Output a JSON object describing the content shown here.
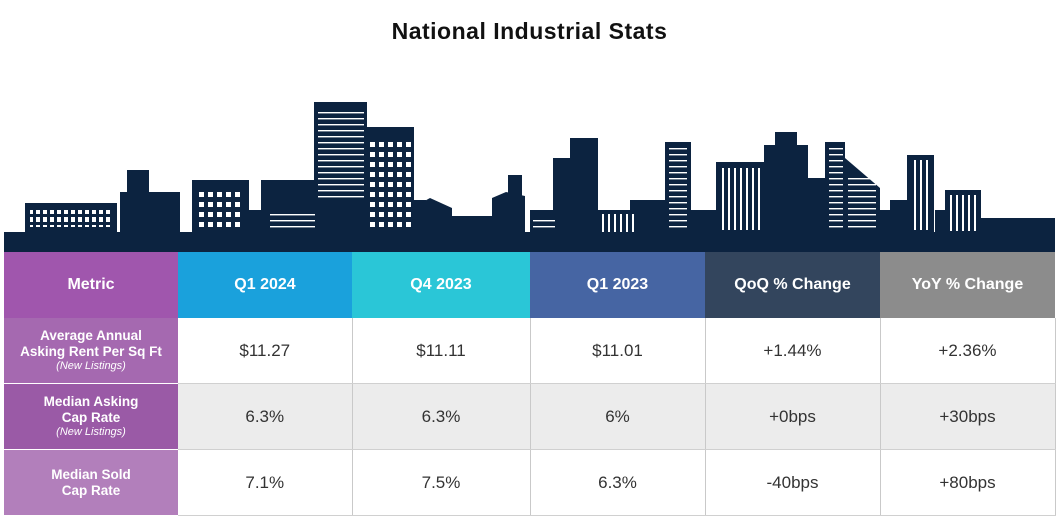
{
  "title": "National Industrial Stats",
  "colors": {
    "skyline": "#0c2340",
    "metric_header": "#a056ad",
    "q1_2024": "#1aa1dc",
    "q4_2023": "#2ac6d7",
    "q1_2023": "#4665a3",
    "qoq": "#33455d",
    "yoy": "#8c8c8c"
  },
  "headers": [
    "Metric",
    "Q1 2024",
    "Q4 2023",
    "Q1 2023",
    "QoQ % Change",
    "YoY % Change"
  ],
  "rows": [
    {
      "label_lines": [
        "Average Annual",
        "Asking Rent Per Sq Ft"
      ],
      "note": "(New Listings)",
      "values": [
        "$11.27",
        "$11.11",
        "$11.01",
        "+1.44%",
        "+2.36%"
      ]
    },
    {
      "label_lines": [
        "Median Asking",
        "Cap Rate"
      ],
      "note": "(New Listings)",
      "values": [
        "6.3%",
        "6.3%",
        "6%",
        "+0bps",
        "+30bps"
      ]
    },
    {
      "label_lines": [
        "Median Sold",
        "Cap Rate"
      ],
      "note": "",
      "values": [
        "7.1%",
        "7.5%",
        "6.3%",
        "-40bps",
        "+80bps"
      ]
    }
  ]
}
